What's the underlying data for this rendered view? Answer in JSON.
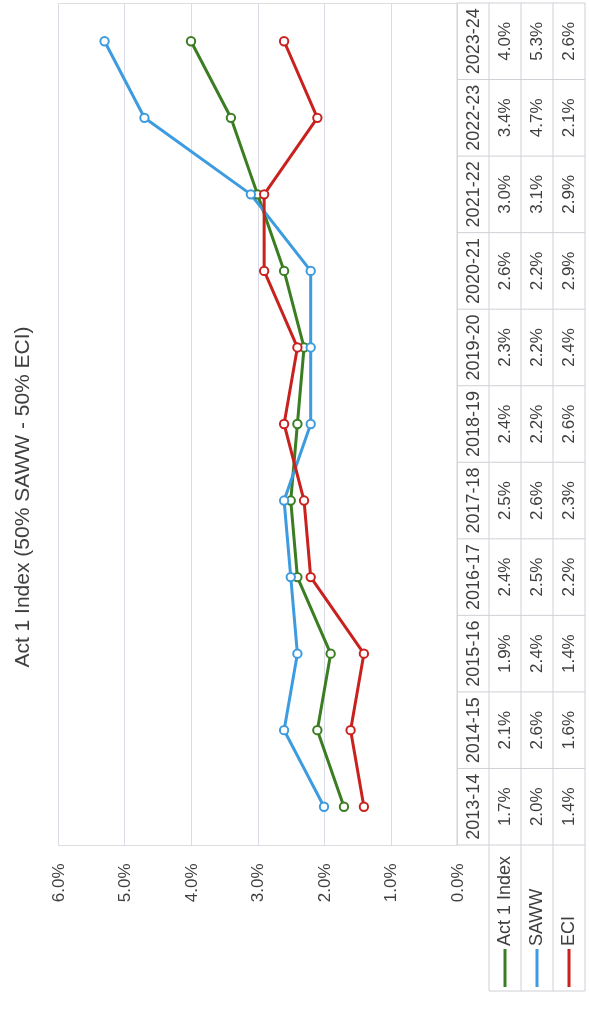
{
  "chart_data": {
    "type": "line",
    "orientation": "horizontal",
    "title": "Act 1 Index (50% SAWW - 50% ECI)",
    "categories": [
      "2023-24",
      "2022-23",
      "2021-22",
      "2020-21",
      "2019-20",
      "2018-19",
      "2017-18",
      "2016-17",
      "2015-16",
      "2014-15",
      "2013-14"
    ],
    "series": [
      {
        "name": "Act 1 Index",
        "color": "#3b7d23",
        "values": [
          4.0,
          3.4,
          3.0,
          2.6,
          2.3,
          2.4,
          2.5,
          2.4,
          1.9,
          2.1,
          1.7
        ],
        "value_labels": [
          "4.0%",
          "3.4%",
          "3.0%",
          "2.6%",
          "2.3%",
          "2.4%",
          "2.5%",
          "2.4%",
          "1.9%",
          "2.1%",
          "1.7%"
        ]
      },
      {
        "name": "SAWW",
        "color": "#3d9be0",
        "values": [
          5.3,
          4.7,
          3.1,
          2.2,
          2.2,
          2.2,
          2.6,
          2.5,
          2.4,
          2.6,
          2.0
        ],
        "value_labels": [
          "5.3%",
          "4.7%",
          "3.1%",
          "2.2%",
          "2.2%",
          "2.2%",
          "2.6%",
          "2.5%",
          "2.4%",
          "2.6%",
          "2.0%"
        ]
      },
      {
        "name": "ECI",
        "color": "#c9211e",
        "values": [
          2.6,
          2.1,
          2.9,
          2.9,
          2.4,
          2.6,
          2.3,
          2.2,
          1.4,
          1.6,
          1.4
        ],
        "value_labels": [
          "2.6%",
          "2.1%",
          "2.9%",
          "2.9%",
          "2.4%",
          "2.6%",
          "2.3%",
          "2.2%",
          "1.4%",
          "1.6%",
          "1.4%"
        ]
      }
    ],
    "xlim": [
      6,
      0
    ],
    "xticks": [
      {
        "value": 6,
        "label": "6.0%"
      },
      {
        "value": 5,
        "label": "5.0%"
      },
      {
        "value": 4,
        "label": "4.0%"
      },
      {
        "value": 3,
        "label": "3.0%"
      },
      {
        "value": 2,
        "label": "2.0%"
      },
      {
        "value": 1,
        "label": "1.0%"
      },
      {
        "value": 0,
        "label": "0.0%"
      }
    ],
    "grid": "x",
    "legend": "bottom",
    "marker": "circle",
    "line_style": "solid"
  }
}
